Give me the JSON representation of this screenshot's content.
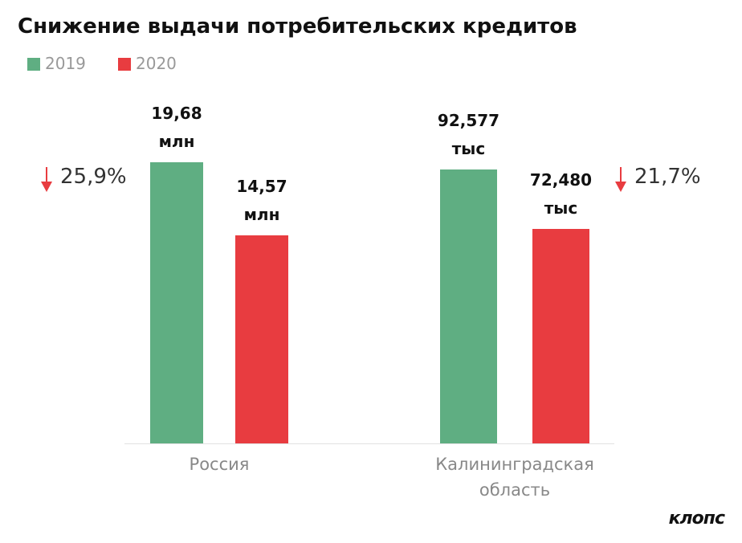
{
  "title": "Снижение выдачи потребительских кредитов",
  "logo": "клопс",
  "chart_data": [
    {
      "type": "bar",
      "category": "Россия",
      "change": "25,9%",
      "ylim": [
        0,
        22.5
      ],
      "series": [
        {
          "name": "2019",
          "color": "#5fae82",
          "values": [
            19.68
          ],
          "value_labels": [
            "19,68 млн"
          ]
        },
        {
          "name": "2020",
          "color": "#e83c40",
          "values": [
            14.57
          ],
          "value_labels": [
            "14,57 млн"
          ]
        }
      ]
    },
    {
      "type": "bar",
      "category": "Калининградская область",
      "change": "21,7%",
      "ylim": [
        0,
        108.6
      ],
      "series": [
        {
          "color": "#5fae82",
          "values": [
            92.577
          ],
          "value_labels": [
            "92,577 тыс"
          ]
        },
        {
          "color": "#e83c40",
          "values": [
            72.48
          ],
          "value_labels": [
            "72,480 тыс"
          ]
        }
      ]
    }
  ]
}
